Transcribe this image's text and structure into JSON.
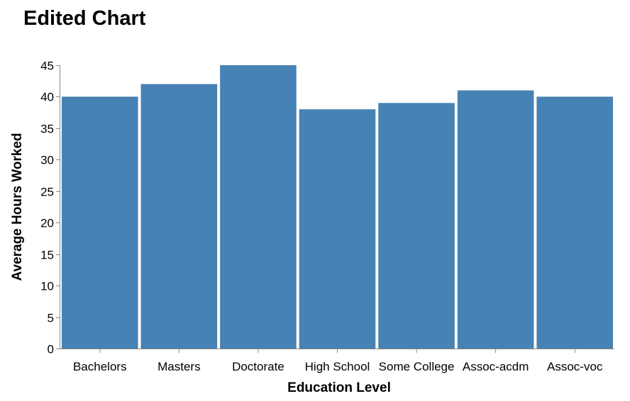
{
  "chart_data": {
    "type": "bar",
    "title": "Edited Chart",
    "xlabel": "Education Level",
    "ylabel": "Average Hours Worked",
    "categories": [
      "Bachelors",
      "Masters",
      "Doctorate",
      "High School",
      "Some College",
      "Assoc-acdm",
      "Assoc-voc"
    ],
    "values": [
      40,
      42,
      45,
      38,
      39,
      41,
      40
    ],
    "ylim": [
      0,
      45
    ],
    "yticks": [
      0,
      5,
      10,
      15,
      20,
      25,
      30,
      35,
      40,
      45
    ],
    "grid": false,
    "legend": "none",
    "bar_color": "#4682b4"
  }
}
